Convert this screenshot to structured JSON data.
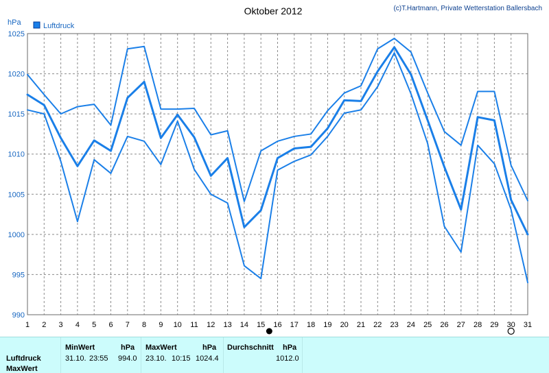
{
  "chart_data": {
    "type": "line",
    "title": "Oktober 2012",
    "credit": "(c)T.Hartmann, Private Wetterstation Ballersbach",
    "ylabel": "hPa",
    "legend": "Luftdruck",
    "legend_placement": "top-left",
    "x": [
      1,
      2,
      3,
      4,
      5,
      6,
      7,
      8,
      9,
      10,
      11,
      12,
      13,
      14,
      15,
      16,
      17,
      18,
      19,
      20,
      21,
      22,
      23,
      24,
      25,
      26,
      27,
      28,
      29,
      30,
      31
    ],
    "xlim": [
      1,
      31
    ],
    "ylim": [
      990,
      1025
    ],
    "yticks": [
      990,
      995,
      1000,
      1005,
      1010,
      1015,
      1020,
      1025
    ],
    "grid": true,
    "series": [
      {
        "role": "max",
        "values": [
          1019.9,
          1017.4,
          1015.0,
          1015.9,
          1016.2,
          1013.6,
          1023.1,
          1023.4,
          1015.6,
          1015.6,
          1015.7,
          1012.4,
          1012.9,
          1004.1,
          1010.4,
          1011.6,
          1012.2,
          1012.5,
          1015.4,
          1017.6,
          1018.5,
          1023.1,
          1024.4,
          1022.7,
          1017.6,
          1012.8,
          1011.1,
          1017.8,
          1017.8,
          1008.6,
          1004.2
        ]
      },
      {
        "role": "average",
        "values": [
          1017.4,
          1016.1,
          1012.0,
          1008.5,
          1011.7,
          1010.4,
          1017.0,
          1019.0,
          1012.0,
          1014.9,
          1012.1,
          1007.3,
          1009.5,
          1000.9,
          1003.0,
          1009.5,
          1010.7,
          1010.9,
          1013.2,
          1016.7,
          1016.6,
          1020.3,
          1023.3,
          1019.9,
          1014.2,
          1008.4,
          1003.1,
          1014.6,
          1014.2,
          1004.3,
          1000.0
        ]
      },
      {
        "role": "min",
        "values": [
          1015.5,
          1015.0,
          1009.1,
          1001.6,
          1009.3,
          1007.6,
          1012.2,
          1011.6,
          1008.7,
          1014.1,
          1008.1,
          1005.0,
          1003.9,
          996.1,
          994.5,
          1008.0,
          1009.1,
          1009.9,
          1012.2,
          1015.1,
          1015.5,
          1018.4,
          1022.6,
          1017.5,
          1011.3,
          1001.0,
          997.8,
          1011.1,
          1008.8,
          1003.1,
          994.0
        ]
      }
    ],
    "line_color": "#1a7fe8",
    "moon_markers": [
      {
        "day": 15.5,
        "phase": "new"
      },
      {
        "day": 30,
        "phase": "full"
      }
    ]
  },
  "stats_table": {
    "row_labels": [
      "Luftdruck",
      "MaxWert"
    ],
    "min": {
      "header": "MinWert",
      "unit": "hPa",
      "date": "31.10.",
      "time": "23:55",
      "value": "994.0"
    },
    "max": {
      "header": "MaxWert",
      "unit": "hPa",
      "date": "23.10.",
      "time": "10:15",
      "value": "1024.4"
    },
    "avg": {
      "header": "Durchschnitt",
      "unit": "hPa",
      "value": "1012.0"
    },
    "background": "#ccfcfc"
  }
}
